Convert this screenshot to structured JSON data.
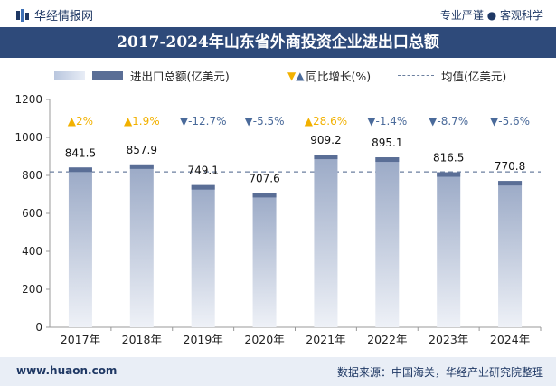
{
  "header": {
    "brand": "华经情报网",
    "tagline": "专业严谨 ● 客观科学"
  },
  "legend": {
    "import_export": "进出口总额(亿美元)",
    "growth": "同比增长(%)",
    "average": "均值(亿美元)"
  },
  "footer": {
    "url": "www.huaon.com",
    "source": "数据来源：中国海关，华经产业研究院整理"
  },
  "colors": {
    "title_bg": "#2e4a7a",
    "bar_top": "#5a6e96",
    "bar_body_top": "#9aa9c6",
    "bar_body_bottom": "#eef1f7",
    "up_arrow": "#f2b100",
    "down_arrow": "#4a6a9a",
    "avg_line": "#6b7f9f"
  },
  "chart_data": {
    "type": "bar",
    "title": "2017-2024年山东省外商投资企业进出口总额",
    "categories": [
      "2017年",
      "2018年",
      "2019年",
      "2020年",
      "2021年",
      "2022年",
      "2023年",
      "2024年"
    ],
    "series": [
      {
        "name": "进出口总额(亿美元)",
        "values": [
          841.5,
          857.9,
          749.1,
          707.6,
          909.2,
          895.1,
          816.5,
          770.8
        ]
      }
    ],
    "growth": {
      "name": "同比增长(%)",
      "values": [
        2,
        1.9,
        -12.7,
        -5.5,
        28.6,
        -1.4,
        -8.7,
        -5.6
      ],
      "labels": [
        "2%",
        "1.9%",
        "-12.7%",
        "-5.5%",
        "28.6%",
        "-1.4%",
        "-8.7%",
        "-5.6%"
      ]
    },
    "average": {
      "name": "均值(亿美元)",
      "value": 818.5
    },
    "ylim": [
      0,
      1200
    ],
    "yticks": [
      0,
      200,
      400,
      600,
      800,
      1000,
      1200
    ],
    "grid": false,
    "legend_position": "top"
  }
}
